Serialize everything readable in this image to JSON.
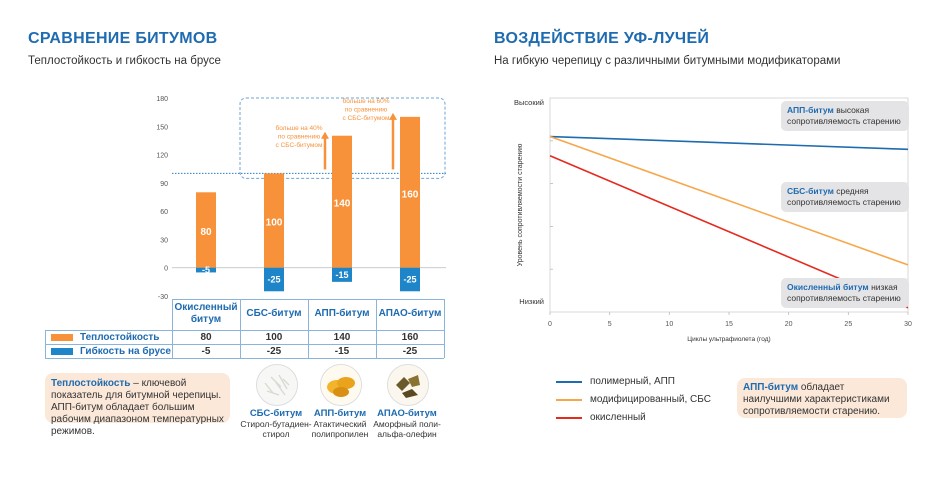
{
  "left": {
    "title": "СРАВНЕНИЕ БИТУМОВ",
    "subtitle": "Теплостойкость и гибкость на брусе"
  },
  "right": {
    "title": "ВОЗДЕЙСТВИЕ УФ-ЛУЧЕЙ",
    "subtitle": "На гибкую черепицу с различными битумными модификаторами"
  },
  "colors": {
    "orange": "#f7923a",
    "blue": "#1e86c8",
    "gray": "#9aa2a8",
    "red": "#e52a1f",
    "dark_blue": "#1e6bb0"
  },
  "chart_data": [
    {
      "type": "bar",
      "title": "",
      "categories": [
        "Окисленный битум",
        "СБС-битум",
        "АПП-битум",
        "АПАО-битум"
      ],
      "series": [
        {
          "name": "Теплостойкость",
          "values": [
            80,
            100,
            140,
            160
          ]
        },
        {
          "name": "Гибкость на брусе",
          "values": [
            -5,
            -25,
            -15,
            -25
          ]
        }
      ],
      "ylim": [
        -30,
        180
      ],
      "yticks": [
        -30,
        0,
        30,
        60,
        90,
        120,
        150,
        180
      ],
      "reference_line": 100,
      "annotations": [
        {
          "text": "больше на 40% по сравнению с СБС-битумом"
        },
        {
          "text": "больше на 60% по сравнению с СБС-битумом"
        }
      ],
      "table": {
        "header": [
          "Окисленный битум",
          "СБС-битум",
          "АПП-битум",
          "АПАО-битум"
        ],
        "rows": [
          {
            "label": "Теплостойкость",
            "values": [
              "80",
              "100",
              "140",
              "160"
            ]
          },
          {
            "label": "Гибкость на брусе",
            "values": [
              "-5",
              "-25",
              "-15",
              "-25"
            ]
          }
        ]
      }
    },
    {
      "type": "line",
      "title": "",
      "xlabel": "Циклы ультрафиолета (год)",
      "ylabel": "Уровень сопротивляемости старению",
      "xlim": [
        0,
        30
      ],
      "xticks": [
        0,
        5,
        10,
        15,
        20,
        25,
        30
      ],
      "ytick_labels": {
        "top": "Высокий",
        "bottom": "Низкий"
      },
      "ylim": [
        0,
        100
      ],
      "series": [
        {
          "name": "полимерный, АПП",
          "x": [
            0,
            30
          ],
          "y": [
            82,
            76
          ]
        },
        {
          "name": "модифицированный, СБС",
          "x": [
            0,
            30
          ],
          "y": [
            82,
            22
          ]
        },
        {
          "name": "окисленный",
          "x": [
            0,
            30
          ],
          "y": [
            73,
            2
          ]
        }
      ],
      "callouts": [
        {
          "bold": "АПП-битум",
          "text": " высокая сопротивляемость старению"
        },
        {
          "bold": "СБС-битум",
          "text": " средняя сопротивляемость старению"
        },
        {
          "bold": "Окисленный битум",
          "text": " низкая сопротивляемость старению"
        }
      ]
    }
  ],
  "left_note": {
    "bold": "Теплостойкость",
    "text": " – ключевой показатель для битумной черепицы. АПП-битум обладает большим рабочим диапазоном температурных режимов."
  },
  "right_note": {
    "bold": "АПП-битум",
    "text": " обладает наилучшими характеристиками сопротивляемости старению."
  },
  "materials": [
    {
      "name": "СБС-битум",
      "desc": "Стирол-бутадиен-стирол",
      "icon": "sbs-granules"
    },
    {
      "name": "АПП-битум",
      "desc": "Атактический полипропилен",
      "icon": "app-pellets"
    },
    {
      "name": "АПАО-битум",
      "desc": "Аморфный поли-альфа-олефин",
      "icon": "apao-chunks"
    }
  ]
}
